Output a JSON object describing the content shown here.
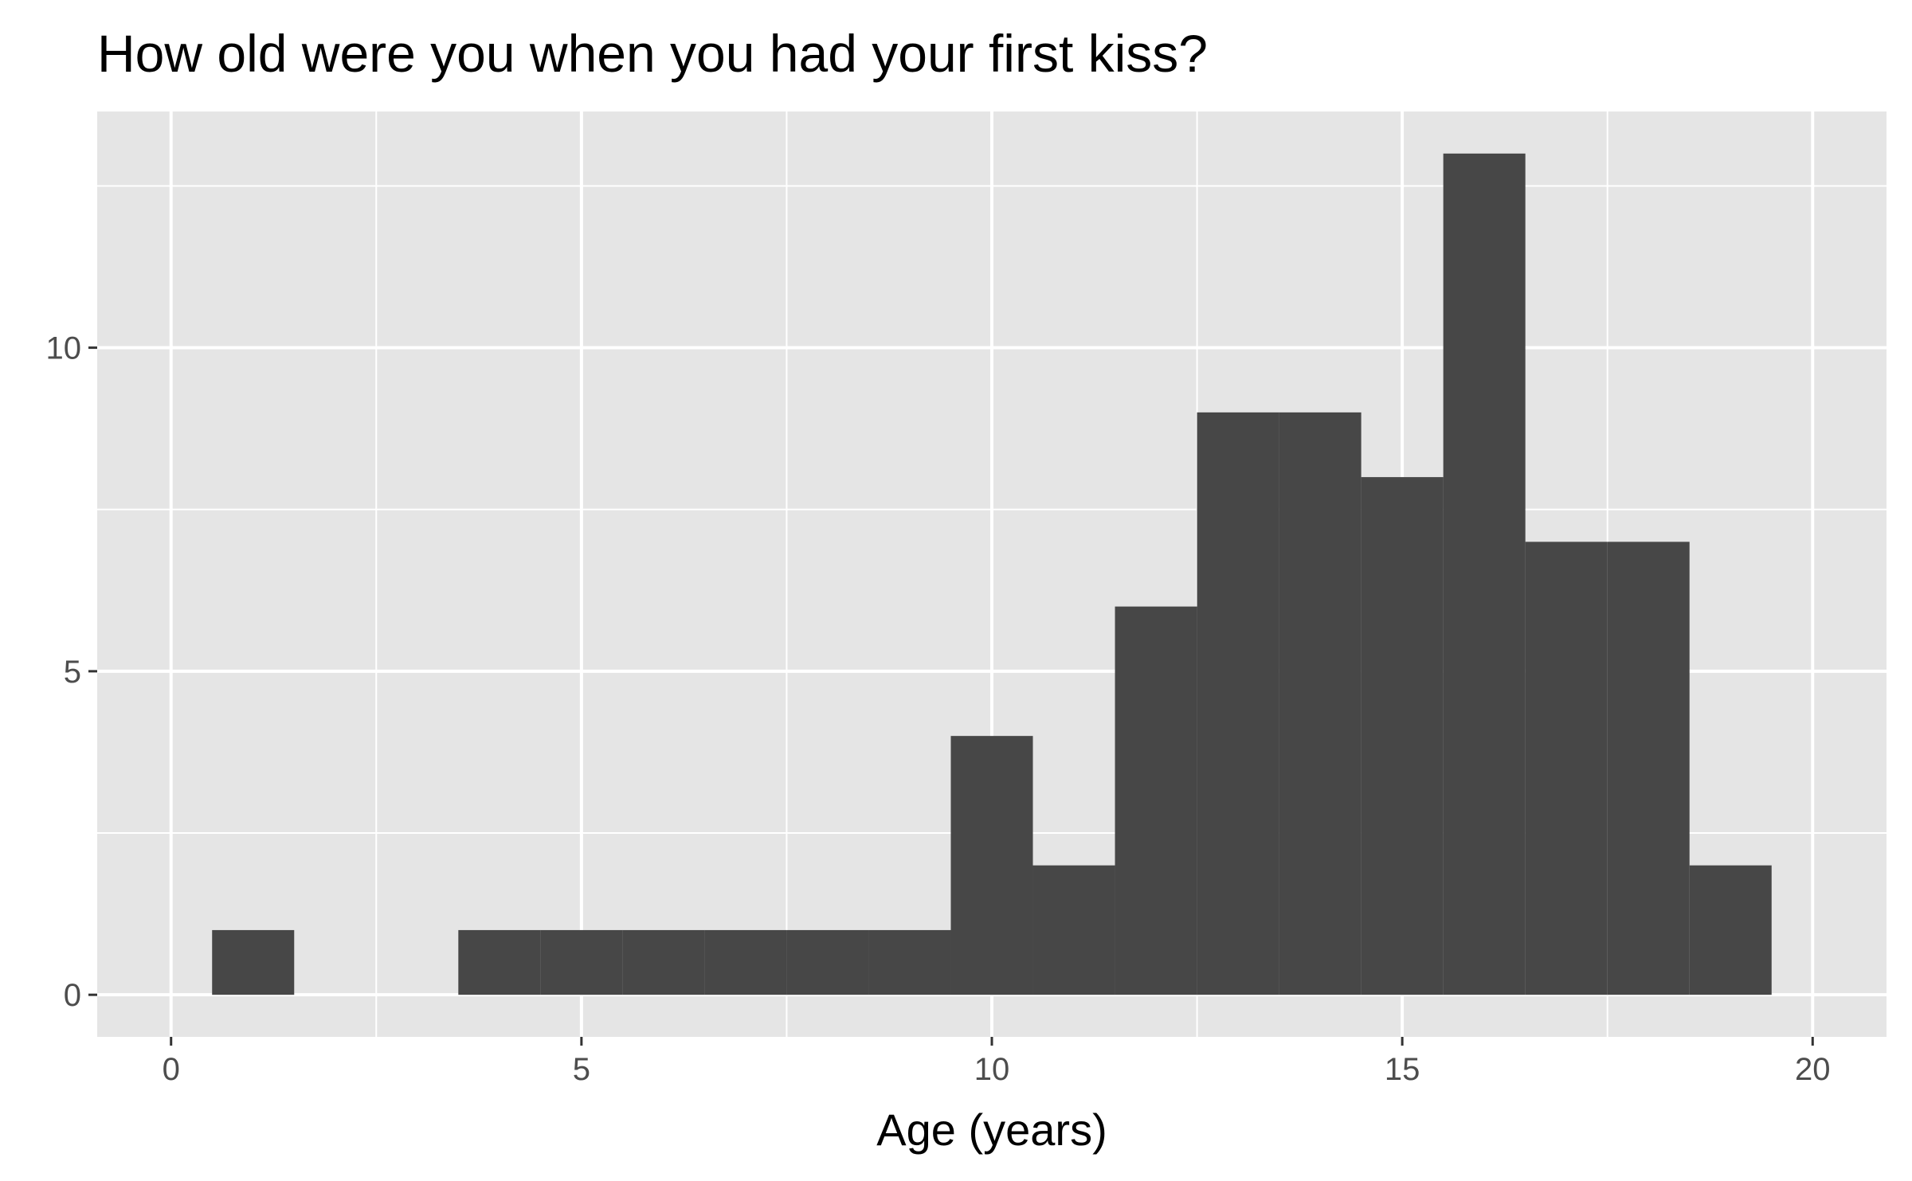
{
  "chart_data": {
    "type": "bar",
    "title": "How old were you when you had your first kiss?",
    "xlabel": "Age (years)",
    "ylabel": "",
    "xlim": [
      -0.9,
      20.9
    ],
    "ylim": [
      -0.65,
      13.65
    ],
    "x_ticks": [
      0,
      5,
      10,
      15,
      20
    ],
    "x_tick_labels": [
      "0",
      "5",
      "10",
      "15",
      "20"
    ],
    "y_ticks": [
      0,
      5,
      10
    ],
    "y_tick_labels": [
      "0",
      "5",
      "10"
    ],
    "grid": true,
    "bin_width": 1,
    "bins": [
      {
        "start": 0.5,
        "end": 1.5,
        "count": 1
      },
      {
        "start": 3.5,
        "end": 4.5,
        "count": 1
      },
      {
        "start": 4.5,
        "end": 5.5,
        "count": 1
      },
      {
        "start": 5.5,
        "end": 6.5,
        "count": 1
      },
      {
        "start": 6.5,
        "end": 7.5,
        "count": 1
      },
      {
        "start": 7.5,
        "end": 8.5,
        "count": 1
      },
      {
        "start": 8.5,
        "end": 9.5,
        "count": 1
      },
      {
        "start": 9.5,
        "end": 10.5,
        "count": 4
      },
      {
        "start": 10.5,
        "end": 11.5,
        "count": 2
      },
      {
        "start": 11.5,
        "end": 12.5,
        "count": 6
      },
      {
        "start": 12.5,
        "end": 13.5,
        "count": 9
      },
      {
        "start": 13.5,
        "end": 14.5,
        "count": 9
      },
      {
        "start": 14.5,
        "end": 15.5,
        "count": 8
      },
      {
        "start": 15.5,
        "end": 16.5,
        "count": 13
      },
      {
        "start": 16.5,
        "end": 17.5,
        "count": 7
      },
      {
        "start": 17.5,
        "end": 18.5,
        "count": 7
      },
      {
        "start": 18.5,
        "end": 19.5,
        "count": 2
      }
    ],
    "colors": {
      "panel_background": "#e5e5e5",
      "grid": "#ffffff",
      "bar_fill": "#474747",
      "tick_text": "#4d4d4d",
      "tick_mark": "#333333"
    }
  }
}
